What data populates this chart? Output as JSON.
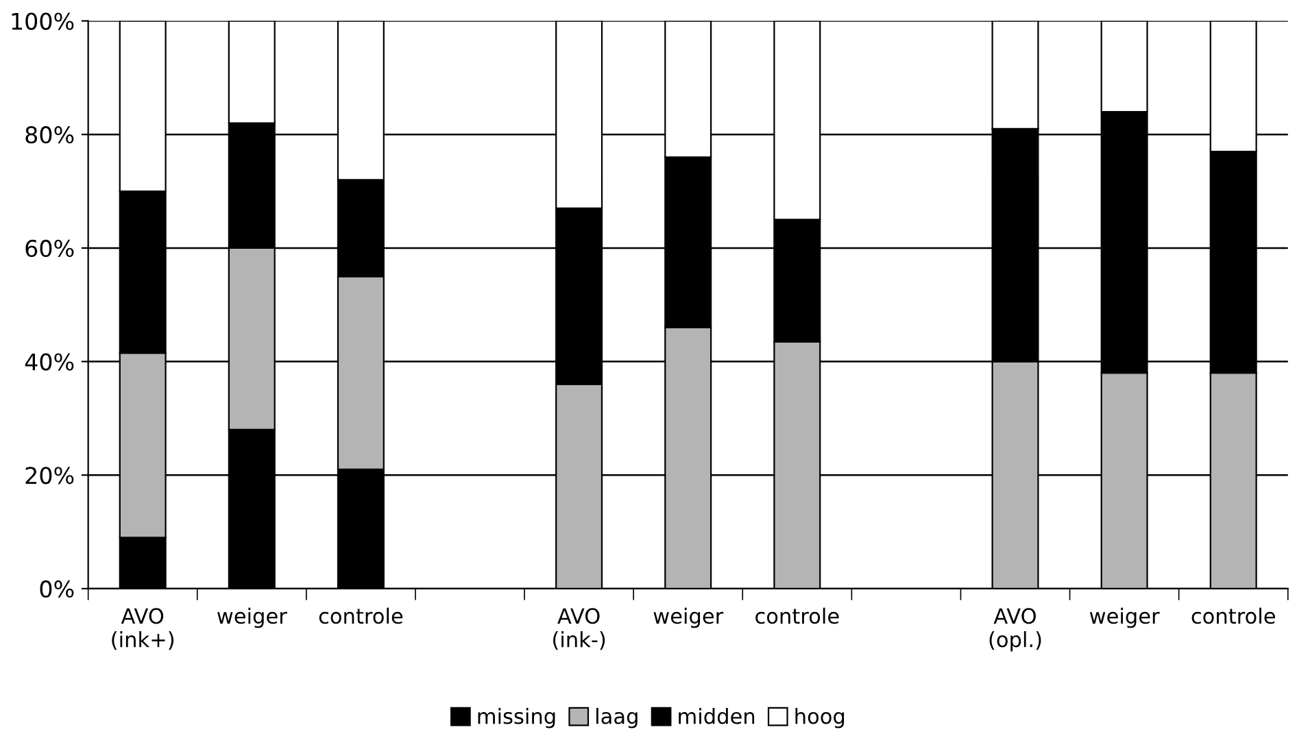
{
  "chart_data": {
    "type": "bar",
    "stacked": true,
    "categories": [
      "AVO\n(ink+)",
      "weiger",
      "controle",
      null,
      "AVO\n(ink-)",
      "weiger",
      "controle",
      null,
      "AVO\n(opl.)",
      "weiger",
      "controle"
    ],
    "series": [
      {
        "name": "missing",
        "color": "#000000",
        "values": [
          9,
          28,
          21,
          null,
          0,
          0,
          0,
          null,
          0,
          0,
          0
        ]
      },
      {
        "name": "laag",
        "color": "#b4b4b4",
        "values": [
          32.5,
          32,
          34,
          null,
          36,
          46,
          43.5,
          null,
          40,
          38,
          38
        ]
      },
      {
        "name": "midden",
        "color": "#000000",
        "values": [
          28.5,
          22,
          17,
          null,
          31,
          30,
          21.5,
          null,
          41,
          46,
          39
        ]
      },
      {
        "name": "hoog",
        "color": "#ffffff",
        "values": [
          30,
          18,
          28,
          null,
          33,
          24,
          35,
          null,
          19,
          16,
          23
        ]
      }
    ],
    "ylim": [
      0,
      100
    ],
    "yticks": [
      {
        "value": 0,
        "label": "0%"
      },
      {
        "value": 20,
        "label": "20%"
      },
      {
        "value": 40,
        "label": "40%"
      },
      {
        "value": 60,
        "label": "60%"
      },
      {
        "value": 80,
        "label": "80%"
      },
      {
        "value": 100,
        "label": "100%"
      }
    ],
    "grid": "y",
    "legend": "bottom"
  }
}
